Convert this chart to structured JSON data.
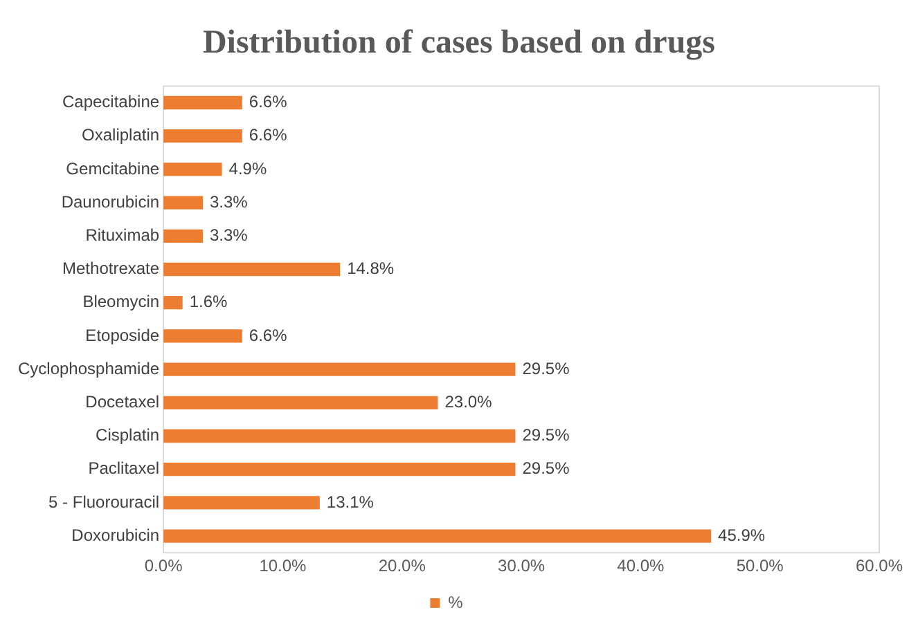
{
  "chart_data": {
    "type": "bar",
    "orientation": "horizontal",
    "title": "Distribution of cases based on drugs",
    "categories": [
      "Capecitabine",
      "Oxaliplatin",
      "Gemcitabine",
      "Daunorubicin",
      "Rituximab",
      "Methotrexate",
      "Bleomycin",
      "Etoposide",
      "Cyclophosphamide",
      "Docetaxel",
      "Cisplatin",
      "Paclitaxel",
      "5 - Fluorouracil",
      "Doxorubicin"
    ],
    "series": [
      {
        "name": "%",
        "color": "#ed7d31",
        "values": [
          6.6,
          6.6,
          4.9,
          3.3,
          3.3,
          14.8,
          1.6,
          6.6,
          29.5,
          23.0,
          29.5,
          29.5,
          13.1,
          45.9
        ],
        "value_labels": [
          "6.6%",
          "6.6%",
          "4.9%",
          "3.3%",
          "3.3%",
          "14.8%",
          "1.6%",
          "6.6%",
          "29.5%",
          "23.0%",
          "29.5%",
          "29.5%",
          "13.1%",
          "45.9%"
        ]
      }
    ],
    "xlim": [
      0,
      60
    ],
    "xticks": [
      {
        "value": 0,
        "label": "0.0%"
      },
      {
        "value": 10,
        "label": "10.0%"
      },
      {
        "value": 20,
        "label": "20.0%"
      },
      {
        "value": 30,
        "label": "30.0%"
      },
      {
        "value": 40,
        "label": "40.0%"
      },
      {
        "value": 50,
        "label": "50.0%"
      },
      {
        "value": 60,
        "label": "60.0%"
      }
    ],
    "grid": false,
    "legend": "bottom"
  }
}
